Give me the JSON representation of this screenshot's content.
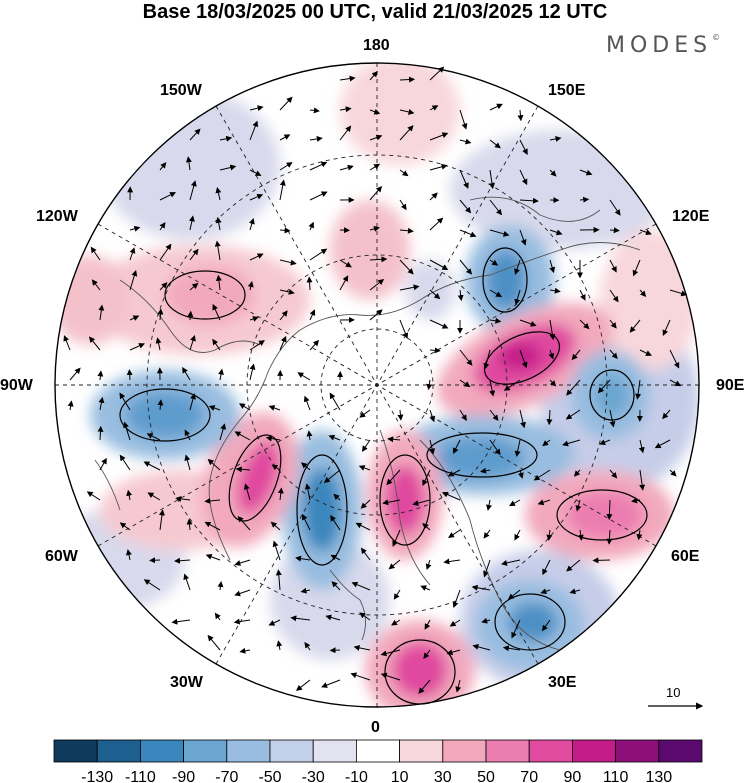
{
  "header": {
    "title": "Base 18/03/2025 00 UTC, valid 21/03/2025 12 UTC",
    "brand": "MODES",
    "brand_mark": "©"
  },
  "map": {
    "projection": "north polar stereographic",
    "longitude_labels": {
      "top": "180",
      "bottom": "0",
      "left": "90W",
      "right": "90E",
      "upper_left_1": "150W",
      "upper_left_2": "120W",
      "upper_right_1": "150E",
      "upper_right_2": "120E",
      "lower_left_1": "60W",
      "lower_left_2": "30W",
      "lower_right_1": "60E",
      "lower_right_2": "30E"
    },
    "reference_vector": {
      "label": "10"
    },
    "colors": {
      "coast": "#555555",
      "grid": "#222222",
      "arrow": "#000000"
    }
  },
  "colorbar": {
    "ticks": [
      "-130",
      "-110",
      "-90",
      "-70",
      "-50",
      "-30",
      "-10",
      "10",
      "30",
      "50",
      "70",
      "90",
      "110",
      "130"
    ],
    "colors": [
      "#0f3a5c",
      "#1d5f8e",
      "#3b87bd",
      "#6aa6d0",
      "#98bde0",
      "#c3d0e9",
      "#e3e2f1",
      "#ffffff",
      "#f8d7dc",
      "#f2a9bd",
      "#ec7db0",
      "#e04a9f",
      "#c41d8a",
      "#8e0f78",
      "#5a0a6e"
    ]
  }
}
